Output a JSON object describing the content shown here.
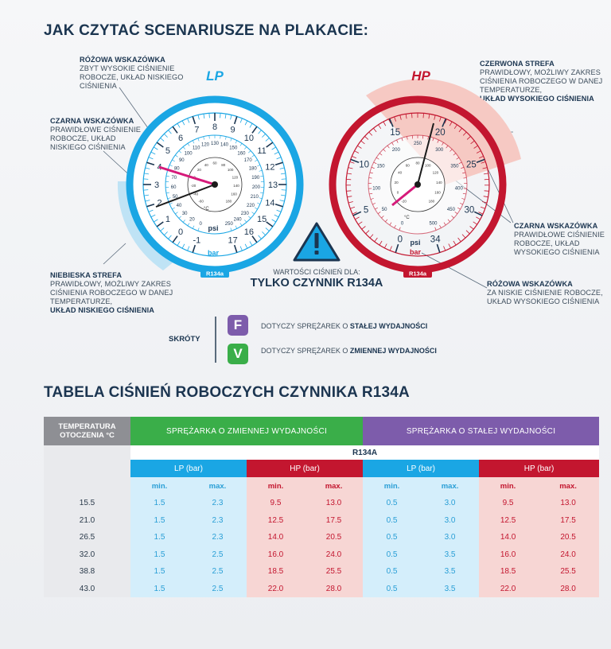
{
  "section1": {
    "title": "JAK CZYTAĆ SCENARIUSZE NA PLAKACIE:"
  },
  "annotations": {
    "pink_lp": {
      "title": "RÓŻOWA WSKAZÓWKA",
      "line1": "ZBYT WYSOKIE CIŚNIENIE",
      "line2": "ROBOCZE, UKŁAD NISKIEGO",
      "line3": "CIŚNIENIA"
    },
    "black_lp": {
      "title": "CZARNA WSKAZÓWKA",
      "line1": "PRAWIDŁOWE CIŚNIENIE",
      "line2": "ROBOCZE, UKŁAD",
      "line3": "NISKIEGO CIŚNIENIA"
    },
    "blue_zone": {
      "title": "NIEBIESKA STREFA",
      "line1": "PRAWIDŁOWY, MOŻLIWY ZAKRES",
      "line2": "CIŚNIENIA ROBOCZEGO W DANEJ",
      "line3": "TEMPERATURZE,",
      "bold": "UKŁAD NISKIEGO CIŚNIENIA"
    },
    "red_zone": {
      "title": "CZERWONA STREFA",
      "line1": "PRAWIDŁOWY, MOŻLIWY ZAKRES",
      "line2": "CIŚNIENIA ROBOCZEGO W DANEJ",
      "line3": "TEMPERATURZE,",
      "bold": "UKŁAD WYSOKIEGO CIŚNIENIA"
    },
    "black_hp": {
      "title": "CZARNA WSKAZÓWKA",
      "line1": "PRAWIDŁOWE CIŚNIENIE",
      "line2": "ROBOCZE, UKŁAD",
      "line3": "WYSOKIEGO CIŚNIENIA"
    },
    "pink_hp": {
      "title": "RÓŻOWA WSKAZÓWKA",
      "line1": "ZA NISKIE CIŚNIENIE ROBOCZE,",
      "line2": "UKŁAD WYSOKIEGO CIŚNIENIA"
    }
  },
  "gauge_lp": {
    "label": "LP",
    "model": "R134a",
    "unit_psi": "psi",
    "unit_bar": "bar",
    "bar_scale": [
      "-1",
      "0",
      "1",
      "2",
      "3",
      "4",
      "5",
      "6",
      "7",
      "8",
      "9",
      "10",
      "11",
      "12",
      "13",
      "14",
      "15",
      "16",
      "17"
    ],
    "psi_scale": [
      "0",
      "20",
      "30",
      "40",
      "50",
      "60",
      "70",
      "80",
      "90",
      "100",
      "110",
      "120",
      "130",
      "140",
      "150",
      "160",
      "170",
      "180",
      "190",
      "200",
      "210",
      "220",
      "230",
      "240",
      "250"
    ],
    "temp_scale": [
      "-60",
      "-40",
      "-20",
      "0",
      "20",
      "40",
      "60",
      "80",
      "100",
      "120",
      "140",
      "160",
      "180"
    ],
    "temp_unit": "°C",
    "color": "#1aa6e4"
  },
  "gauge_hp": {
    "label": "HP",
    "model": "R134a",
    "unit_psi": "psi",
    "unit_bar": "bar",
    "bar_scale": [
      "0",
      "5",
      "10",
      "15",
      "20",
      "25",
      "30",
      "34"
    ],
    "psi_scale": [
      "0",
      "50",
      "100",
      "150",
      "200",
      "250",
      "300",
      "350",
      "400",
      "450",
      "500"
    ],
    "temp_scale": [
      "-20",
      "0",
      "20",
      "40",
      "60",
      "80",
      "100",
      "120",
      "140",
      "160",
      "180"
    ],
    "temp_unit": "°C",
    "color": "#c3162f"
  },
  "warning": {
    "text": "WARTOŚCI CIŚNIEŃ DLA:",
    "big": "TYLKO CZYNNIK R134A",
    "icon": "warning-triangle-icon"
  },
  "shortcuts": {
    "label": "SKRÓTY",
    "items": [
      {
        "letter": "F",
        "color": "#7d5cab",
        "pre": "DOTYCZY SPRĘŻAREK O ",
        "bold": "STAŁEJ WYDAJNOŚCI"
      },
      {
        "letter": "V",
        "color": "#3aae49",
        "pre": "DOTYCZY SPRĘŻAREK O ",
        "bold": "ZMIENNEJ WYDAJNOŚCI"
      }
    ]
  },
  "section2": {
    "title": "TABELA CIŚNIEŃ ROBOCZYCH CZYNNIKA R134A"
  },
  "table": {
    "temp_header": "TEMPERATURA OTOCZENIA °C",
    "variable_header": "SPRĘŻARKA O ZMIENNEJ WYDAJNOŚCI",
    "fixed_header": "SPRĘŻARKA O STAŁEJ WYDAJNOŚCI",
    "refrigerant": "R134A",
    "lp_header": "LP (bar)",
    "hp_header": "HP (bar)",
    "min": "min.",
    "max": "max.",
    "rows": [
      {
        "temp": "15.5",
        "v_lp_min": "1.5",
        "v_lp_max": "2.3",
        "v_hp_min": "9.5",
        "v_hp_max": "13.0",
        "f_lp_min": "0.5",
        "f_lp_max": "3.0",
        "f_hp_min": "9.5",
        "f_hp_max": "13.0"
      },
      {
        "temp": "21.0",
        "v_lp_min": "1.5",
        "v_lp_max": "2.3",
        "v_hp_min": "12.5",
        "v_hp_max": "17.5",
        "f_lp_min": "0.5",
        "f_lp_max": "3.0",
        "f_hp_min": "12.5",
        "f_hp_max": "17.5"
      },
      {
        "temp": "26.5",
        "v_lp_min": "1.5",
        "v_lp_max": "2.3",
        "v_hp_min": "14.0",
        "v_hp_max": "20.5",
        "f_lp_min": "0.5",
        "f_lp_max": "3.0",
        "f_hp_min": "14.0",
        "f_hp_max": "20.5"
      },
      {
        "temp": "32.0",
        "v_lp_min": "1.5",
        "v_lp_max": "2.5",
        "v_hp_min": "16.0",
        "v_hp_max": "24.0",
        "f_lp_min": "0.5",
        "f_lp_max": "3.5",
        "f_hp_min": "16.0",
        "f_hp_max": "24.0"
      },
      {
        "temp": "38.8",
        "v_lp_min": "1.5",
        "v_lp_max": "2.5",
        "v_hp_min": "18.5",
        "v_hp_max": "25.5",
        "f_lp_min": "0.5",
        "f_lp_max": "3.5",
        "f_hp_min": "18.5",
        "f_hp_max": "25.5"
      },
      {
        "temp": "43.0",
        "v_lp_min": "1.5",
        "v_lp_max": "2.5",
        "v_hp_min": "22.0",
        "v_hp_max": "28.0",
        "f_lp_min": "0.5",
        "f_lp_max": "3.5",
        "f_hp_min": "22.0",
        "f_hp_max": "28.0"
      }
    ]
  }
}
